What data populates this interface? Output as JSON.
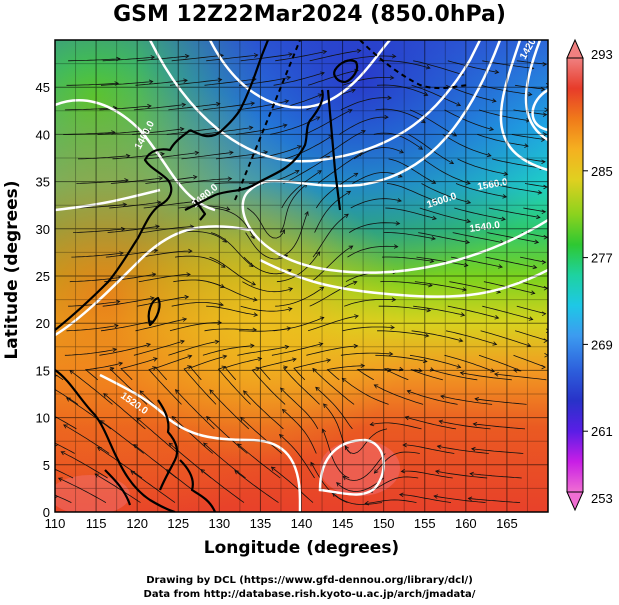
{
  "title": "GSM 12Z22Mar2024 (850.0hPa)",
  "axes": {
    "xlabel": "Longitude (degrees)",
    "ylabel": "Latitude  (degrees)",
    "x_ticks": [
      "110",
      "115",
      "120",
      "125",
      "130",
      "135",
      "140",
      "145",
      "150",
      "155",
      "160",
      "165"
    ],
    "y_ticks": [
      "0",
      "5",
      "10",
      "15",
      "20",
      "25",
      "30",
      "35",
      "40",
      "45"
    ]
  },
  "colorbar": {
    "labels": [
      "293",
      "285",
      "277",
      "269",
      "261",
      "253"
    ],
    "colors": [
      "#f08080",
      "#e73c2a",
      "#f07a1a",
      "#f5b020",
      "#e0d020",
      "#8cd21e",
      "#2ec832",
      "#1ed2a0",
      "#1ec8e6",
      "#3c9bf0",
      "#2d5fdc",
      "#2832c8",
      "#8c1ee6",
      "#e61ec8",
      "#f06ed2"
    ]
  },
  "contour_labels": [
    "1400.0",
    "1520.0",
    "1500.0",
    "1560.0",
    "1480.0",
    "1540.0",
    "1420.0"
  ],
  "credits": {
    "line1": "Drawing by DCL (https://www.gfd-dennou.org/library/dcl/)",
    "line2": "Data from http://database.rish.kyoto-u.ac.jp/arch/jmadata/"
  }
}
